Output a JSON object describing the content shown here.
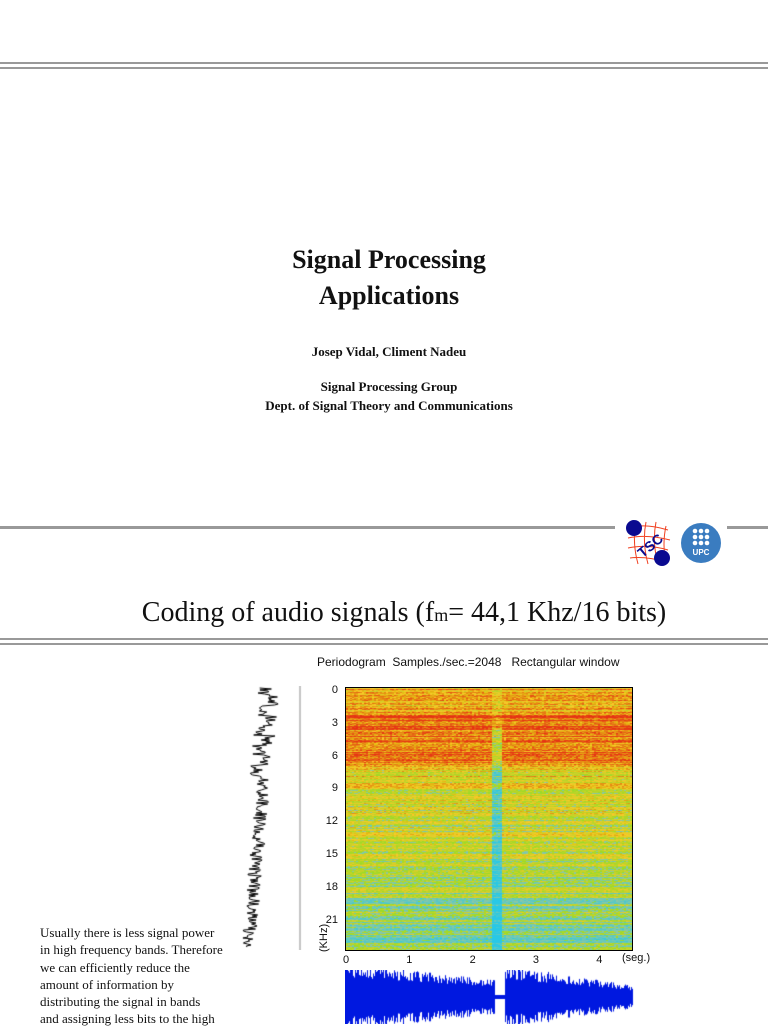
{
  "slide1": {
    "title_line1": "Signal Processing",
    "title_line2": "Applications",
    "authors": "Josep Vidal, Climent Nadeu",
    "group": "Signal Processing Group",
    "dept": "Dept. of Signal Theory and Communications",
    "logos": [
      "TSC",
      "UPC"
    ]
  },
  "slide2": {
    "title_prefix": "Coding of audio signals (f",
    "title_sub": "m",
    "title_suffix": "= 44,1 Khz/16 bits)",
    "figure": {
      "caption": "Periodogram  Samples./sec.=2048   Rectangular window",
      "y_ticks": [
        "0",
        "3",
        "6",
        "9",
        "12",
        "15",
        "18",
        "21"
      ],
      "y_label": "(KHz)",
      "x_ticks": [
        "0",
        "1",
        "2",
        "3",
        "4"
      ],
      "x_label": "(seg.)",
      "colors": {
        "low": "#22c8e0",
        "mid": "#f0e020",
        "high": "#e02010",
        "waveform": "#0018e0"
      }
    },
    "body_text": [
      "Usually there is less signal power",
      "in high frequency bands. Therefore",
      "we can efficiently reduce the",
      "amount of information by",
      "distributing the signal in bands",
      "and assigning less bits to the high"
    ]
  }
}
